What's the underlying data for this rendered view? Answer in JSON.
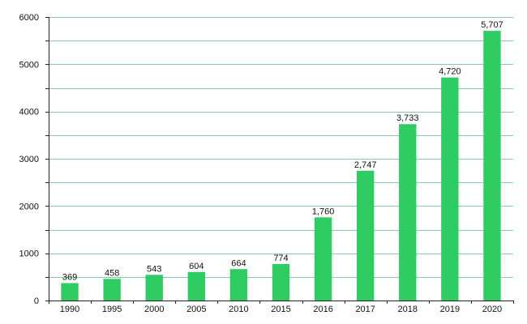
{
  "chart_data": {
    "type": "bar",
    "title": "",
    "xlabel": "",
    "ylabel": "",
    "categories": [
      "1990",
      "1995",
      "2000",
      "2005",
      "2010",
      "2015",
      "2016",
      "2017",
      "2018",
      "2019",
      "2020"
    ],
    "values": [
      369,
      458,
      543,
      604,
      664,
      774,
      1760,
      2747,
      3733,
      4720,
      5707
    ],
    "data_labels": [
      "369",
      "458",
      "543",
      "604",
      "664",
      "774",
      "1,760",
      "2,747",
      "3,733",
      "4,720",
      "5,707"
    ],
    "ylim": [
      0,
      6000
    ],
    "yticks": [
      0,
      1000,
      2000,
      3000,
      4000,
      5000,
      6000
    ],
    "ytick_labels": [
      "0",
      "1000",
      "2000",
      "3000",
      "4000",
      "5000",
      "6000"
    ],
    "grid_values": [
      500,
      1000,
      1500,
      2000,
      2500,
      3000,
      3500,
      4000,
      4500,
      5000,
      5500,
      6000
    ],
    "grid": true,
    "legend": "none",
    "colors": {
      "bar": "#2ecc63",
      "grid": "#7fd19b",
      "axis": "#222222"
    }
  }
}
